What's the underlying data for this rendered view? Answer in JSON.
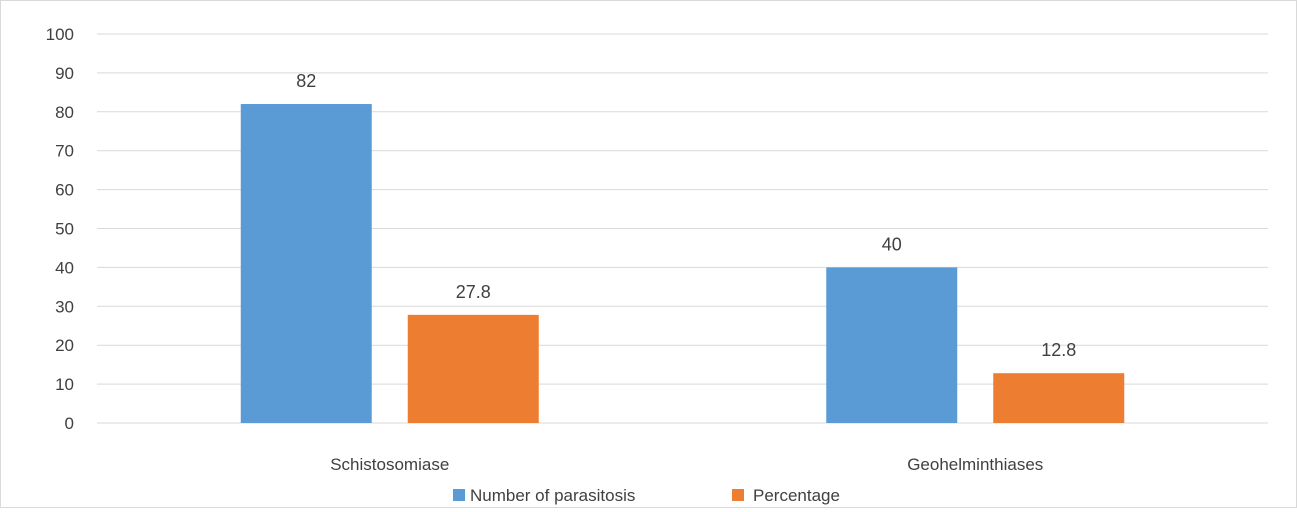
{
  "chart_data": {
    "type": "bar",
    "categories": [
      "Schistosomiase",
      "Geohelminthiases"
    ],
    "series": [
      {
        "name": "Number of parasitosis",
        "values": [
          82,
          40
        ],
        "labels": [
          "82",
          "40"
        ],
        "color": "#5b9bd5"
      },
      {
        "name": "Percentage",
        "values": [
          27.8,
          12.8
        ],
        "labels": [
          "27.8",
          "12.8"
        ],
        "color": "#ed7d31"
      }
    ],
    "yticks": [
      "0",
      "10",
      "20",
      "30",
      "40",
      "50",
      "60",
      "70",
      "80",
      "90",
      "100"
    ],
    "ylim": [
      0,
      100
    ],
    "grid": true,
    "legend_position": "bottom"
  }
}
